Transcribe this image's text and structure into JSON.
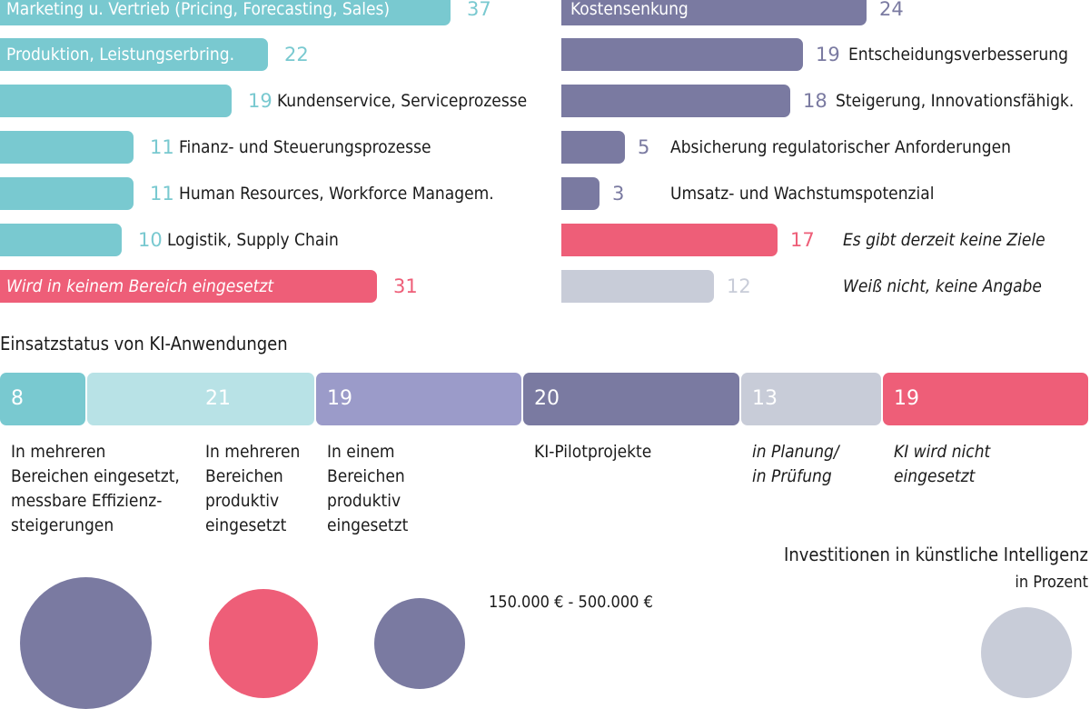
{
  "chart_data": [
    {
      "type": "bar",
      "orientation": "horizontal",
      "categories": [
        "Marketing u. Vertrieb (Pricing, Forecasting, Sales)",
        "Produktion, Leistungserbring.",
        "Kundenservice, Serviceprozesse",
        "Finanz- und Steuerungsprozesse",
        "Human Resources, Workforce Managem.",
        "Logistik, Supply Chain",
        "Wird in keinem Bereich eingesetzt"
      ],
      "values": [
        37,
        22,
        19,
        11,
        11,
        10,
        31
      ],
      "colors": [
        "#79c9d0",
        "#79c9d0",
        "#79c9d0",
        "#79c9d0",
        "#79c9d0",
        "#79c9d0",
        "#ee5e78"
      ]
    },
    {
      "type": "bar",
      "orientation": "horizontal",
      "categories": [
        "Kostensenkung",
        "Entscheidungsverbesserung",
        "Steigerung, Innovationsfähigk.",
        "Absicherung regulatorischer Anforderungen",
        "Umsatz- und Wachstumspotenzial",
        "Es gibt derzeit keine Ziele",
        "Weiß nicht, keine Angabe"
      ],
      "values": [
        24,
        19,
        18,
        5,
        3,
        17,
        12
      ],
      "colors": [
        "#7a7aa1",
        "#7a7aa1",
        "#7a7aa1",
        "#7a7aa1",
        "#7a7aa1",
        "#ee5e78",
        "#c8ccd8"
      ]
    },
    {
      "type": "bar",
      "stacked": true,
      "title": "Einsatzstatus von KI-Anwendungen",
      "segments": [
        {
          "value": 8,
          "label": "In mehreren\nBereichen eingesetzt,\nmessbare Effizienz-\nsteigerungen",
          "color": "#79c9d0",
          "italic": false
        },
        {
          "value": 21,
          "label": "In mehreren\nBereichen\nproduktiv\neingesetzt",
          "color": "#b8e2e6",
          "italic": false
        },
        {
          "value": 19,
          "label": "In einem\nBereichen\nproduktiv\neingesetzt",
          "color": "#9b9bc9",
          "italic": false
        },
        {
          "value": 20,
          "label": "KI-Pilotprojekte",
          "color": "#7a7aa1",
          "italic": false
        },
        {
          "value": 13,
          "label": "in Planung/\nin Prüfung",
          "color": "#c8ccd8",
          "italic": true
        },
        {
          "value": 19,
          "label": "KI wird nicht\neingesetzt",
          "color": "#ee5e78",
          "italic": true
        }
      ]
    },
    {
      "type": "bubble",
      "title": "Investitionen in künstliche Intelligenz",
      "subtitle": "in Prozent",
      "visible_partial_label": "150.000 € - 500.000 €",
      "circles": [
        {
          "color": "#7a7aa1"
        },
        {
          "color": "#ee5e78"
        },
        {
          "color": "#7a7aa1"
        },
        {
          "color": "#c8ccd8"
        }
      ]
    }
  ]
}
